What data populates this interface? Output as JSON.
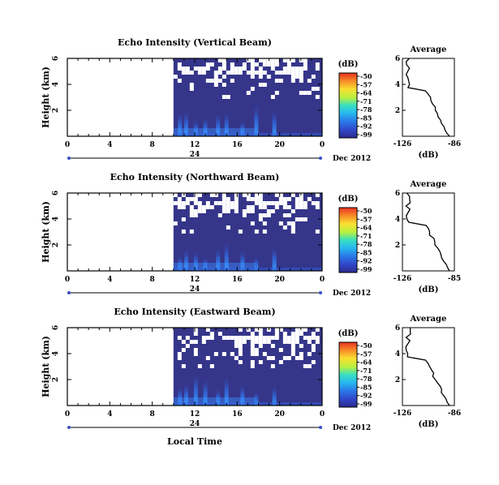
{
  "chart_data": [
    {
      "type": "heatmap",
      "title": "Echo Intensity (Vertical Beam)",
      "ylabel": "Height (km)",
      "xticks": [
        "0",
        "4",
        "8",
        "12",
        "16",
        "20",
        "0"
      ],
      "xlim": [
        0,
        24
      ],
      "yticks": [
        "2",
        "4",
        "6"
      ],
      "ylim": [
        0,
        6
      ],
      "date_axis": {
        "label": "24",
        "unit": "Dec 2012"
      },
      "colorbar": {
        "label": "(dB)",
        "ticks": [
          "-50",
          "-57",
          "-64",
          "-71",
          "-78",
          "-85",
          "-92",
          "-99"
        ]
      },
      "data_start_hour": 10,
      "average": {
        "title": "Average",
        "xlabel": "(dB)",
        "xticks": [
          "-126",
          "-86"
        ],
        "yticks": [
          "2",
          "4",
          "6"
        ]
      }
    },
    {
      "type": "heatmap",
      "title": "Echo Intensity (Northward Beam)",
      "ylabel": "Height (km)",
      "xticks": [
        "0",
        "4",
        "8",
        "12",
        "16",
        "20",
        "0"
      ],
      "xlim": [
        0,
        24
      ],
      "yticks": [
        "2",
        "4",
        "6"
      ],
      "ylim": [
        0,
        6
      ],
      "date_axis": {
        "label": "24",
        "unit": "Dec 2012"
      },
      "colorbar": {
        "label": "(dB)",
        "ticks": [
          "-50",
          "-57",
          "-64",
          "-71",
          "-78",
          "-85",
          "-92",
          "-99"
        ]
      },
      "data_start_hour": 10,
      "average": {
        "title": "Average",
        "xlabel": "(dB)",
        "xticks": [
          "-126",
          "-85"
        ],
        "yticks": [
          "2",
          "4",
          "6"
        ]
      }
    },
    {
      "type": "heatmap",
      "title": "Echo Intensity (Eastward Beam)",
      "ylabel": "Height (km)",
      "xticks": [
        "0",
        "4",
        "8",
        "12",
        "16",
        "20",
        "0"
      ],
      "xlim": [
        0,
        24
      ],
      "yticks": [
        "2",
        "4",
        "6"
      ],
      "ylim": [
        0,
        6
      ],
      "date_axis": {
        "label": "24",
        "unit": "Dec 2012"
      },
      "colorbar": {
        "label": "(dB)",
        "ticks": [
          "-50",
          "-57",
          "-64",
          "-71",
          "-78",
          "-85",
          "-92",
          "-99"
        ]
      },
      "data_start_hour": 10,
      "average": {
        "title": "Average",
        "xlabel": "(dB)",
        "xticks": [
          "-126",
          "-86"
        ],
        "yticks": [
          "2",
          "4",
          "6"
        ]
      }
    }
  ],
  "xlabel": "Local Time",
  "colors": {
    "background_echo": "#35358a",
    "missing": "#ffffff"
  }
}
